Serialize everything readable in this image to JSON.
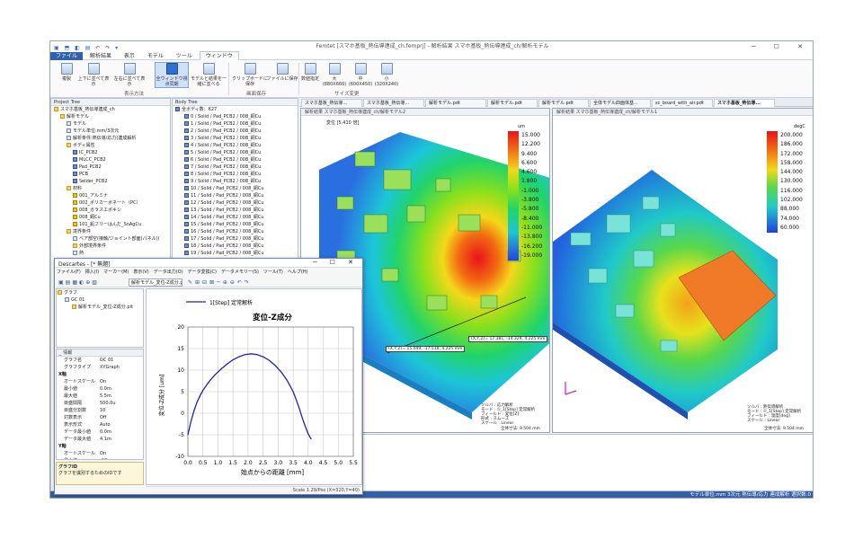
{
  "window": {
    "title": "Femtet [スマホ基板_熱伝導連成_ch.femprj] - 解析結果 スマホ基板_熱伝導連成_ch/解析モデル",
    "controls": "─ ☐ ✕",
    "qat_icons": "▣ ⬒ ◧ ▤ ↶ ↷ ▾"
  },
  "menu": {
    "items": [
      {
        "label": "ファイル"
      },
      {
        "label": "解析結果"
      },
      {
        "label": "表示"
      },
      {
        "label": "モデル"
      },
      {
        "label": "ツール"
      },
      {
        "label": "ウィンドウ"
      }
    ]
  },
  "ribbon": {
    "buttons": {
      "copy": "複製",
      "tile_v": "上下に並べて表示",
      "tile_h": "左右に並べて表示",
      "all_windows": "全ウィンドウ視点同期",
      "model_result": "モデルと結果を一緒に並べる",
      "clip_save": "クリップボードに保存",
      "file_save": "ファイルに保存",
      "numeric": "数値指定",
      "large": "大(880X660)",
      "medium": "中(600X450)",
      "small": "小(320X240)"
    },
    "groups": {
      "display": "表示方法",
      "image_save": "画面保存",
      "size_change": "サイズ変更"
    }
  },
  "project_tree": {
    "title": "Project Tree",
    "rows": [
      "スマホ基板_熱伝導連成_ch",
      "解析モデル",
      "モデル",
      "モデル単位:mm/3次元",
      "解析条件:熱伝導/応力(連成解析",
      "ボディ属性",
      "IC_PCB2",
      "MLCC_PCB2",
      "Pad_PCB2",
      "PCB",
      "Solder_PCB2",
      "材料",
      "001_アルミナ",
      "002_ポリカーボネート（PC）",
      "008_ガラスエポキシ",
      "008_銅Cu",
      "101_鉛フリーはんだ_SnAgCu",
      "境界条件",
      "ベア部空(接触/ジョイント部面(パネル))",
      "外部境界条件",
      "熱"
    ]
  },
  "body_tree": {
    "title": "Body Tree",
    "rows": [
      "全ボディ数：627",
      "0 / Solid / Pad_PCB2 / 008_銅Cu",
      "1 / Solid / Pad_PCB2 / 008_銅Cu",
      "2 / Solid / Pad_PCB2 / 008_銅Cu",
      "3 / Solid / Pad_PCB2 / 008_銅Cu",
      "4 / Solid / Pad_PCB2 / 008_銅Cu",
      "5 / Solid / Pad_PCB2 / 008_銅Cu",
      "6 / Solid / Pad_PCB2 / 008_銅Cu",
      "7 / Solid / Pad_PCB2 / 008_銅Cu",
      "8 / Solid / Pad_PCB2 / 008_銅Cu",
      "9 / Solid / Pad_PCB2 / 008_銅Cu",
      "10 / Solid / Pad_PCB2 / 008_銅Cu",
      "11 / Solid / Pad_PCB2 / 008_銅Cu",
      "12 / Solid / Pad_PCB2 / 008_銅Cu",
      "13 / Solid / Pad_PCB2 / 008_銅Cu",
      "14 / Solid / Pad_PCB2 / 008_銅Cu",
      "15 / Solid / Pad_PCB2 / 008_銅Cu",
      "16 / Solid / Pad_PCB2 / 008_銅Cu",
      "17 / Solid / Pad_PCB2 / 008_銅Cu",
      "18 / Solid / Pad_PCB2 / 008_銅Cu",
      "19 / Solid / Pad_PCB2 / 008_銅Cu"
    ]
  },
  "doc_tabs": [
    "スマホ基板_熱伝導...",
    "スマホ基板_熱伝導...",
    "解析モデル.pdt",
    "解析モデル.pdt",
    "解析モデル.pdt",
    "全体モデル四面体基...",
    "sc_board_with_air.pdt",
    "スマホ基板_熱伝導..."
  ],
  "view_left": {
    "title": "解析結果 スマホ基板_熱伝導連成_ch/解析モデル2",
    "top_label": "変位 [5.410 倍]",
    "unit": "um",
    "legend": [
      "15.000",
      "12.200",
      "9.400",
      "6.600",
      "4.600",
      "1.800",
      "-1.000",
      "-3.800",
      "-5.800",
      "-8.400",
      "-11.000",
      "-13.800",
      "-16.200",
      "-19.000"
    ],
    "probe1": "(X,Y,Z)= 15.049, -17.518, 4.225 mm",
    "probe2": "(X,Y,Z)= 17.381, -14.329, 4.225 mm",
    "info": [
      "ソルバ : 応力解析",
      "モード : ①_1[Step] 定常解析",
      "フィールド : 変位[Z]",
      "形式 : スムーズ",
      "スケール : Linear"
    ],
    "scale": "全体寸法: 9.504 mm"
  },
  "view_right": {
    "title": "解析結果 スマホ基板_熱伝導連成_ch/解析モデル1",
    "unit": "degC",
    "legend": [
      "200.000",
      "186.000",
      "172.000",
      "158.000",
      "144.000",
      "130.000",
      "116.000",
      "102.000",
      "88.000",
      "74.000",
      "60.000"
    ],
    "info": [
      "ソルバ : 熱伝導解析",
      "モード : ①_1[Step] 定常解析",
      "フィールド : 温度[deg]",
      "スケール : Linear"
    ],
    "scale": "全体寸法: 9.504 mm"
  },
  "descartes": {
    "title": "Descartes - [* 無題]",
    "controls": "─ ☐ ✕",
    "menu": [
      "ファイル(F)",
      "挿入(I)",
      "マーカー(M)",
      "表示(V)",
      "データ出力(O)",
      "データ変換(C)",
      "データメモリー(S)",
      "ツール(T)",
      "ヘルプ(H)"
    ],
    "toolbar_combo": "解析モデル_変位-Z成分.p",
    "tree": [
      "グラフ",
      "GC 01",
      "解析モデル_変位-Z成分.plt"
    ],
    "props_title": "_ 情報",
    "props": [
      [
        "グラフ名",
        "GC 01"
      ],
      [
        "グラフタイプ",
        "XYGraph"
      ],
      [
        "X軸",
        ""
      ],
      [
        "オートスケール",
        "On"
      ],
      [
        "最小値",
        "0.0m"
      ],
      [
        "最大値",
        "5.5m"
      ],
      [
        "目盛間隔",
        "500.0u"
      ],
      [
        "目盛分割数",
        "10"
      ],
      [
        "対数表示",
        "Off"
      ],
      [
        "表示形式",
        "Auto"
      ],
      [
        "データ最小値",
        "0.0m"
      ],
      [
        "データ最大値",
        "4.1m"
      ],
      [
        "Y軸",
        ""
      ],
      [
        "オートスケール",
        "On"
      ],
      [
        "最小値",
        "-10u"
      ],
      [
        "最大値",
        "20u"
      ],
      [
        "目盛間隔",
        "5u"
      ],
      [
        "目盛分割数",
        "10"
      ],
      [
        "対数表示",
        "Off"
      ]
    ],
    "hint_title": "グラフID",
    "hint": "グラフを識別するためのIDです",
    "status": "Scale 1.29/Pos (X=320,Y=40)"
  },
  "status_bar": "モデル単位:mm 3次元 熱伝導/応力 連成解析 選択数:0",
  "chart_data": {
    "type": "line",
    "legend": "1[Step] 定常解析",
    "title": "変位-Z成分",
    "xlabel": "始点からの距離 [mm]",
    "ylabel": "変位-Z成分 [um]",
    "xlim": [
      0,
      5.5
    ],
    "ylim": [
      -10,
      20
    ],
    "xticks": [
      "0.0",
      "0.5",
      "1.0",
      "1.5",
      "2.0",
      "2.5",
      "3.0",
      "3.5",
      "4.0",
      "4.5",
      "5.0",
      "5.5"
    ],
    "yticks": [
      "20",
      "15",
      "10",
      "5",
      "0",
      "-5",
      "-10"
    ],
    "x": [
      0.0,
      0.1,
      0.2,
      0.3,
      0.4,
      0.5,
      0.7,
      0.9,
      1.1,
      1.3,
      1.5,
      1.7,
      1.9,
      2.1,
      2.3,
      2.5,
      2.7,
      2.9,
      3.1,
      3.3,
      3.5,
      3.6,
      3.7,
      3.8,
      3.9,
      4.0,
      4.1
    ],
    "y": [
      -5.0,
      -2.0,
      0.5,
      2.5,
      4.0,
      5.3,
      7.3,
      8.9,
      10.2,
      11.4,
      12.4,
      13.1,
      13.6,
      13.8,
      13.6,
      13.1,
      12.3,
      11.1,
      9.6,
      7.6,
      5.0,
      3.2,
      1.2,
      -1.0,
      -3.0,
      -4.8,
      -6.0
    ],
    "color": "#2020b0"
  },
  "colors": {
    "accent": "#3060b0",
    "status_bg": "#3560a8"
  }
}
